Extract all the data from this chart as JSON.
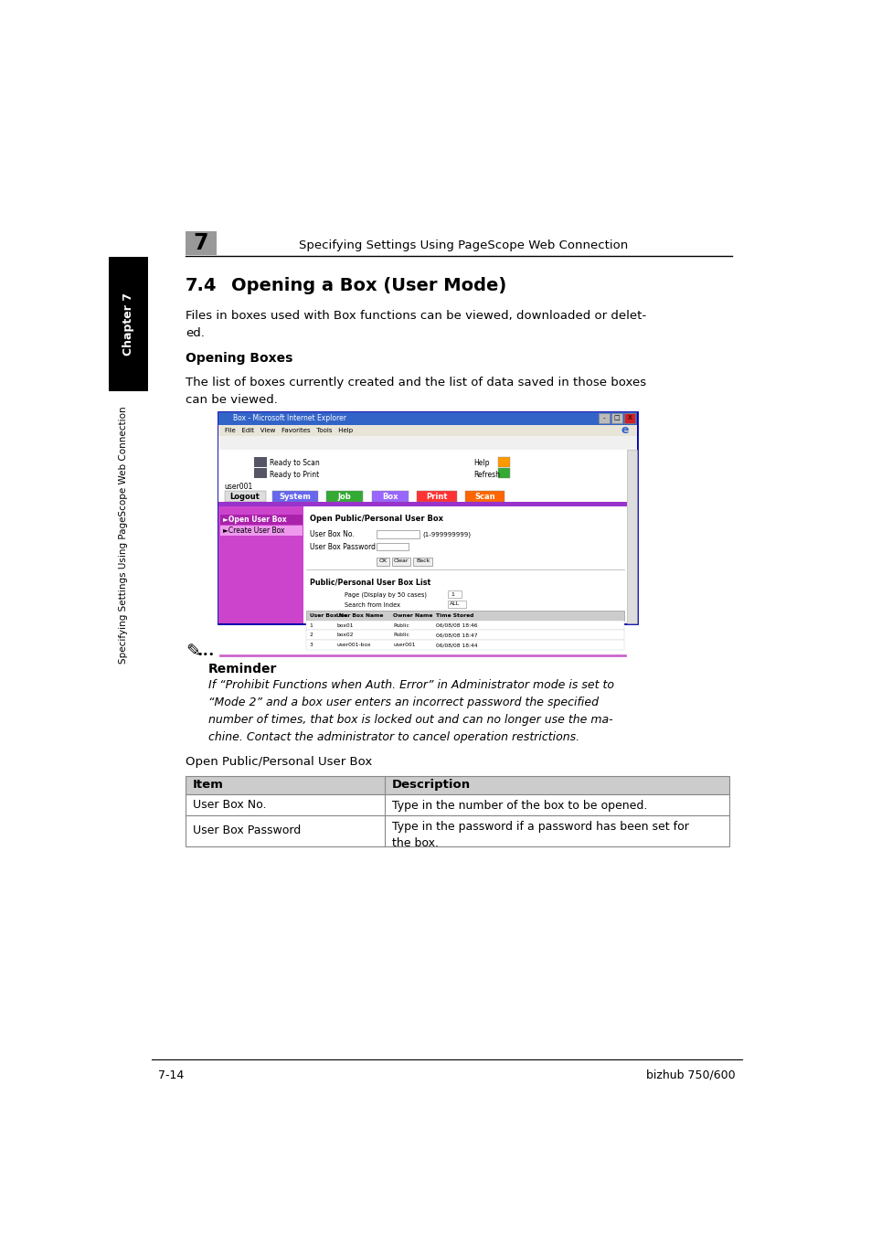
{
  "page_header_chapter": "7",
  "page_header_text": "Specifying Settings Using PageScope Web Connection",
  "section_number": "7.4",
  "section_title": "Opening a Box (User Mode)",
  "body_text1": "Files in boxes used with Box functions can be viewed, downloaded or delet-\ned.",
  "subsection_title": "Opening Boxes",
  "body_text2": "The list of boxes currently created and the list of data saved in those boxes\ncan be viewed.",
  "reminder_title": "Reminder",
  "reminder_text": "If “Prohibit Functions when Auth. Error” in Administrator mode is set to\n“Mode 2” and a box user enters an incorrect password the specified\nnumber of times, that box is locked out and can no longer use the ma-\nchine. Contact the administrator to cancel operation restrictions.",
  "table_caption": "Open Public/Personal User Box",
  "table_headers": [
    "Item",
    "Description"
  ],
  "table_rows": [
    [
      "User Box No.",
      "Type in the number of the box to be opened."
    ],
    [
      "User Box Password",
      "Type in the password if a password has been set for\nthe box."
    ]
  ],
  "footer_left": "7-14",
  "footer_right": "bizhub 750/600",
  "chapter_tab_text": "Chapter 7",
  "sidebar_text": "Specifying Settings Using PageScope Web Connection",
  "bg_color": "#ffffff",
  "tab_bg_color": "#000000",
  "tab_text_color": "#ffffff",
  "header_line_color": "#000000",
  "chapter_box_color": "#999999",
  "browser_title_color": "#3264c8",
  "browser_border_color": "#0000aa",
  "nav_system_color": "#6666ff",
  "nav_job_color": "#33aa33",
  "nav_box_color": "#9966ff",
  "nav_print_color": "#ff3333",
  "nav_scan_color": "#ff6600",
  "sidebar_purple_color": "#cc44cc",
  "sidebar_pink_color": "#ffaaff",
  "nav_purple_bar_color": "#9933cc",
  "table_header_bg": "#cccccc",
  "outer_table_header_bg": "#cccccc"
}
